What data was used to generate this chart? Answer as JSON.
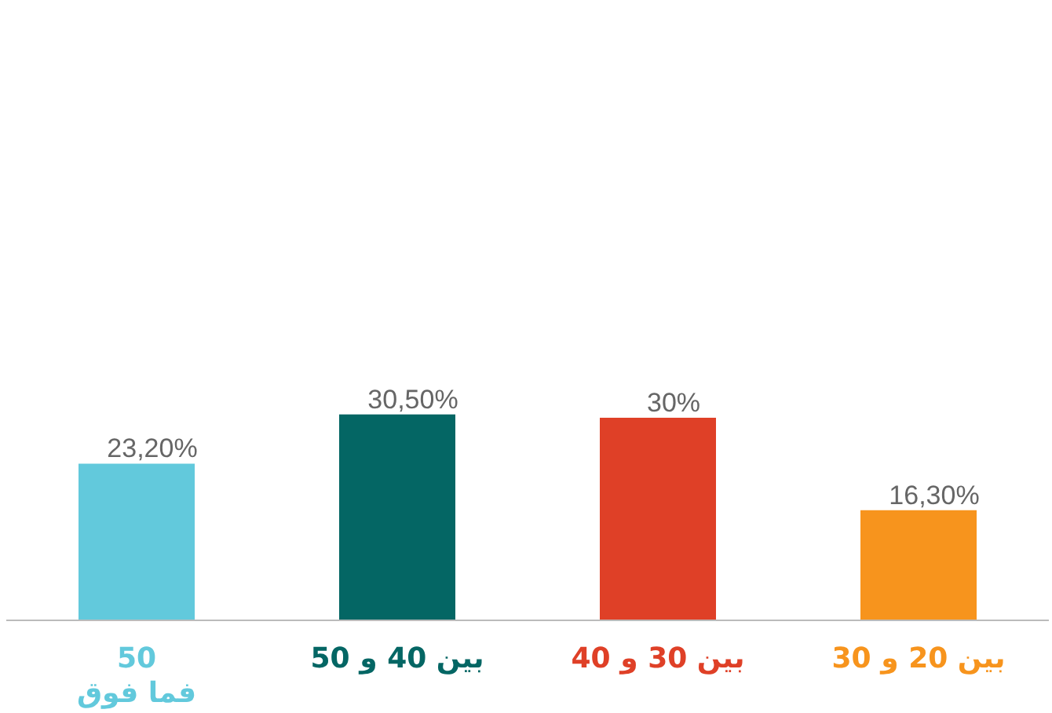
{
  "chart_data": {
    "type": "bar",
    "categories": [
      "50\nفما فوق",
      "بين 40 و 50",
      "بين 30 و 40",
      "بين 20 و 30"
    ],
    "values": [
      23.2,
      30.5,
      30,
      16.3
    ],
    "value_labels": [
      "23,20%",
      "30,50%",
      "30%",
      "16,30%"
    ],
    "colors": [
      "#62c9dc",
      "#046664",
      "#df4027",
      "#f7941d"
    ],
    "tick_labels": "x",
    "legend": false
  }
}
